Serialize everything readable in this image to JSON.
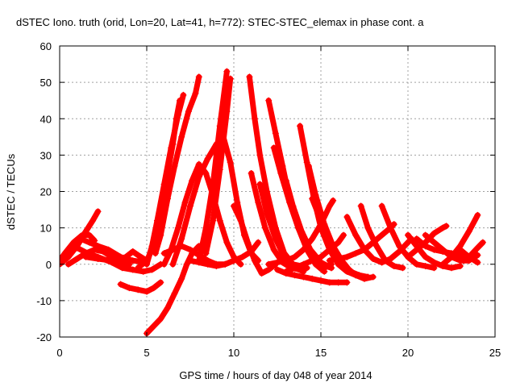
{
  "chart_data": {
    "type": "scatter",
    "title": "dSTEC Iono. truth (orid, Lon=20, Lat=41, h=772): STEC-STEC_elemax in phase cont. a",
    "xlabel": "GPS time / hours of day 048 of year 2014",
    "ylabel": "dSTEC  / TECUs",
    "xlim": [
      0,
      25
    ],
    "ylim": [
      -20,
      60
    ],
    "xticks": [
      "0",
      "5",
      "10",
      "15",
      "20",
      "25"
    ],
    "yticks": [
      "-20",
      "-10",
      "0",
      "10",
      "20",
      "30",
      "40",
      "50",
      "60"
    ],
    "grid": true,
    "marker": "+",
    "color": "#ff0000",
    "arcs": [
      [
        [
          0.0,
          1
        ],
        [
          0.3,
          3
        ],
        [
          0.8,
          6
        ],
        [
          1.3,
          8
        ],
        [
          1.7,
          8
        ],
        [
          2.0,
          6.5
        ]
      ],
      [
        [
          0.0,
          0
        ],
        [
          0.5,
          2
        ],
        [
          1.0,
          5
        ],
        [
          1.5,
          9
        ],
        [
          1.9,
          12
        ],
        [
          2.2,
          14.5
        ]
      ],
      [
        [
          0.3,
          2
        ],
        [
          0.8,
          5
        ],
        [
          1.2,
          7
        ],
        [
          1.7,
          6
        ],
        [
          2.2,
          5
        ],
        [
          2.8,
          4
        ],
        [
          3.5,
          2
        ],
        [
          4.2,
          1
        ],
        [
          5.0,
          0.5
        ]
      ],
      [
        [
          0.5,
          0
        ],
        [
          1.0,
          1.5
        ],
        [
          1.5,
          3
        ],
        [
          2.0,
          4
        ],
        [
          2.5,
          3.5
        ],
        [
          3.0,
          2
        ],
        [
          3.6,
          0.5
        ],
        [
          4.0,
          0
        ]
      ],
      [
        [
          1.0,
          4.5
        ],
        [
          1.6,
          3
        ],
        [
          2.2,
          2
        ],
        [
          3.0,
          0.5
        ],
        [
          3.6,
          -1
        ],
        [
          4.2,
          -1.5
        ],
        [
          4.8,
          -2
        ],
        [
          5.3,
          -1.5
        ],
        [
          5.8,
          0
        ]
      ],
      [
        [
          1.5,
          2
        ],
        [
          2.2,
          1.5
        ],
        [
          3.0,
          1
        ],
        [
          3.8,
          2
        ],
        [
          4.2,
          3.5
        ],
        [
          4.5,
          2.5
        ],
        [
          5.0,
          1
        ]
      ],
      [
        [
          3.5,
          -5.5
        ],
        [
          4.0,
          -6.5
        ],
        [
          4.5,
          -7
        ],
        [
          5.0,
          -7.5
        ],
        [
          5.4,
          -6.5
        ],
        [
          5.8,
          -5
        ]
      ],
      [
        [
          4.5,
          -1
        ],
        [
          5.0,
          1
        ],
        [
          5.3,
          4
        ],
        [
          5.6,
          10
        ],
        [
          5.9,
          17
        ],
        [
          6.2,
          25
        ],
        [
          6.5,
          33
        ],
        [
          6.7,
          40
        ],
        [
          6.9,
          45
        ]
      ],
      [
        [
          5.0,
          0
        ],
        [
          5.3,
          5
        ],
        [
          5.6,
          12
        ],
        [
          6.0,
          22
        ],
        [
          6.4,
          32
        ],
        [
          6.8,
          41
        ],
        [
          7.1,
          46.5
        ]
      ],
      [
        [
          5.5,
          3
        ],
        [
          5.8,
          8
        ],
        [
          6.2,
          18
        ],
        [
          6.6,
          27
        ],
        [
          7.0,
          35
        ],
        [
          7.4,
          42
        ],
        [
          7.8,
          47
        ],
        [
          8.0,
          51.5
        ]
      ],
      [
        [
          5.0,
          -19
        ],
        [
          5.4,
          -17
        ],
        [
          5.8,
          -15
        ],
        [
          6.2,
          -12
        ],
        [
          6.6,
          -8
        ],
        [
          7.0,
          -4
        ],
        [
          7.3,
          0
        ],
        [
          7.6,
          3
        ],
        [
          8.0,
          5
        ]
      ],
      [
        [
          6.0,
          3
        ],
        [
          6.5,
          4
        ],
        [
          7.0,
          5
        ],
        [
          7.5,
          4
        ],
        [
          8.0,
          2.5
        ],
        [
          8.5,
          1
        ],
        [
          9.0,
          0
        ],
        [
          9.5,
          0
        ],
        [
          10.0,
          1
        ]
      ],
      [
        [
          6.0,
          0
        ],
        [
          6.4,
          4
        ],
        [
          6.8,
          10
        ],
        [
          7.2,
          17
        ],
        [
          7.6,
          23
        ],
        [
          8.0,
          27.5
        ],
        [
          8.4,
          25
        ],
        [
          8.8,
          19
        ],
        [
          9.2,
          12
        ],
        [
          9.6,
          6
        ],
        [
          10.0,
          2
        ],
        [
          10.4,
          0
        ]
      ],
      [
        [
          6.5,
          0
        ],
        [
          7.0,
          7
        ],
        [
          7.5,
          16
        ],
        [
          8.0,
          24
        ],
        [
          8.5,
          29
        ],
        [
          9.0,
          33
        ],
        [
          9.4,
          35
        ],
        [
          9.8,
          28
        ],
        [
          10.2,
          17
        ],
        [
          10.6,
          8
        ],
        [
          11.0,
          3
        ],
        [
          11.4,
          1
        ]
      ],
      [
        [
          8.0,
          1
        ],
        [
          8.4,
          10
        ],
        [
          8.8,
          22
        ],
        [
          9.2,
          38
        ],
        [
          9.6,
          53
        ]
      ],
      [
        [
          8.4,
          3
        ],
        [
          8.8,
          12
        ],
        [
          9.2,
          26
        ],
        [
          9.6,
          42
        ],
        [
          9.8,
          51
        ]
      ],
      [
        [
          7.5,
          1
        ],
        [
          8.0,
          0.5
        ],
        [
          8.5,
          0
        ],
        [
          9.0,
          -0.5
        ],
        [
          9.5,
          0
        ],
        [
          10.0,
          1
        ],
        [
          10.5,
          2
        ],
        [
          11.0,
          3.5
        ],
        [
          11.4,
          6
        ]
      ],
      [
        [
          10.0,
          16
        ],
        [
          10.4,
          12
        ],
        [
          10.8,
          6
        ],
        [
          11.2,
          1
        ],
        [
          11.6,
          -2.5
        ],
        [
          12.0,
          -1.5
        ],
        [
          12.4,
          0
        ]
      ],
      [
        [
          10.9,
          51.5
        ],
        [
          11.2,
          40
        ],
        [
          11.5,
          30
        ],
        [
          11.9,
          20
        ],
        [
          12.4,
          10
        ],
        [
          12.9,
          3
        ],
        [
          13.4,
          0
        ],
        [
          13.9,
          -0.5
        ]
      ],
      [
        [
          11.0,
          25
        ],
        [
          11.4,
          17
        ],
        [
          11.8,
          10
        ],
        [
          12.3,
          4
        ],
        [
          12.8,
          0.5
        ],
        [
          13.3,
          -1
        ],
        [
          13.8,
          -1.5
        ],
        [
          14.2,
          -1
        ]
      ],
      [
        [
          11.5,
          22
        ],
        [
          11.9,
          14
        ],
        [
          12.4,
          7
        ],
        [
          12.9,
          2
        ],
        [
          13.5,
          -1
        ],
        [
          14.0,
          -2
        ]
      ],
      [
        [
          12.0,
          45
        ],
        [
          12.4,
          36
        ],
        [
          12.8,
          27
        ],
        [
          13.2,
          18
        ],
        [
          13.7,
          10
        ],
        [
          14.2,
          4
        ],
        [
          14.7,
          0
        ],
        [
          15.2,
          -2
        ]
      ],
      [
        [
          12.3,
          32
        ],
        [
          12.7,
          25
        ],
        [
          13.2,
          17
        ],
        [
          13.7,
          10
        ],
        [
          14.2,
          5
        ],
        [
          14.7,
          1
        ],
        [
          15.2,
          -1
        ],
        [
          15.6,
          0
        ]
      ],
      [
        [
          12.4,
          31
        ],
        [
          12.9,
          23
        ],
        [
          13.4,
          15
        ],
        [
          13.9,
          8
        ],
        [
          14.4,
          3
        ],
        [
          15.0,
          0
        ],
        [
          15.6,
          -1
        ]
      ],
      [
        [
          13.0,
          23
        ],
        [
          13.4,
          16
        ],
        [
          13.9,
          9
        ],
        [
          14.4,
          4
        ],
        [
          15.0,
          0.5
        ],
        [
          15.6,
          -1
        ]
      ],
      [
        [
          13.8,
          38
        ],
        [
          14.2,
          28
        ],
        [
          14.6,
          18
        ],
        [
          15.0,
          10
        ],
        [
          15.5,
          4
        ],
        [
          16.0,
          0
        ],
        [
          16.5,
          -2
        ],
        [
          17.0,
          -3
        ]
      ],
      [
        [
          14.3,
          27
        ],
        [
          14.7,
          19
        ],
        [
          15.2,
          11
        ],
        [
          15.7,
          5
        ],
        [
          16.2,
          1
        ],
        [
          16.7,
          -2
        ],
        [
          17.2,
          -3
        ],
        [
          17.7,
          -3.5
        ]
      ],
      [
        [
          14.5,
          18
        ],
        [
          15.0,
          12
        ],
        [
          15.5,
          6
        ],
        [
          16.0,
          2
        ],
        [
          16.5,
          -1
        ],
        [
          17.0,
          -3
        ],
        [
          17.5,
          -4
        ],
        [
          18.0,
          -3.5
        ]
      ],
      [
        [
          12.0,
          0
        ],
        [
          12.5,
          0.5
        ],
        [
          13.0,
          1
        ],
        [
          13.5,
          2
        ],
        [
          14.0,
          4
        ],
        [
          14.5,
          7
        ],
        [
          15.0,
          11
        ],
        [
          15.5,
          16
        ],
        [
          15.7,
          17.5
        ]
      ],
      [
        [
          13.0,
          -2
        ],
        [
          13.5,
          -1
        ],
        [
          14.0,
          0
        ],
        [
          14.5,
          1
        ],
        [
          15.0,
          2
        ],
        [
          15.5,
          4
        ],
        [
          16.0,
          6
        ],
        [
          16.3,
          8
        ]
      ],
      [
        [
          12.5,
          -1.5
        ],
        [
          13.0,
          -2.5
        ],
        [
          13.5,
          -3
        ],
        [
          14.0,
          -3.5
        ],
        [
          14.5,
          -4
        ],
        [
          15.0,
          -4.5
        ],
        [
          15.5,
          -5
        ],
        [
          16.0,
          -5
        ],
        [
          16.5,
          -5
        ]
      ],
      [
        [
          16.5,
          13
        ],
        [
          17.0,
          8
        ],
        [
          17.5,
          4
        ],
        [
          18.0,
          1.5
        ],
        [
          18.5,
          0.5
        ],
        [
          19.0,
          1.5
        ],
        [
          19.5,
          3.5
        ],
        [
          20.0,
          6
        ],
        [
          20.2,
          7
        ]
      ],
      [
        [
          17.3,
          16
        ],
        [
          17.7,
          10
        ],
        [
          18.2,
          5
        ],
        [
          18.7,
          1
        ],
        [
          19.2,
          -0.5
        ],
        [
          19.7,
          -1
        ]
      ],
      [
        [
          18.5,
          16
        ],
        [
          19.0,
          10
        ],
        [
          19.5,
          5
        ],
        [
          20.0,
          2
        ],
        [
          20.5,
          0
        ],
        [
          21.0,
          -0.5
        ],
        [
          21.5,
          -1
        ]
      ],
      [
        [
          15.5,
          1
        ],
        [
          16.0,
          1.5
        ],
        [
          16.5,
          2
        ],
        [
          17.0,
          3
        ],
        [
          17.5,
          4
        ],
        [
          18.0,
          6
        ],
        [
          18.5,
          8
        ],
        [
          19.0,
          10
        ],
        [
          19.2,
          11
        ]
      ],
      [
        [
          20.0,
          8
        ],
        [
          20.5,
          5
        ],
        [
          21.0,
          2
        ],
        [
          21.5,
          0.5
        ],
        [
          22.0,
          -0.5
        ],
        [
          22.5,
          -1
        ],
        [
          23.0,
          -0.5
        ]
      ],
      [
        [
          20.5,
          7
        ],
        [
          21.0,
          5
        ],
        [
          21.5,
          4
        ],
        [
          22.0,
          3.5
        ],
        [
          22.5,
          3
        ],
        [
          23.0,
          2.5
        ],
        [
          23.5,
          1
        ]
      ],
      [
        [
          20.0,
          2
        ],
        [
          20.5,
          4
        ],
        [
          21.0,
          6
        ],
        [
          21.5,
          8.5
        ],
        [
          22.0,
          10
        ],
        [
          22.2,
          10.5
        ]
      ],
      [
        [
          21.0,
          8
        ],
        [
          21.5,
          6
        ],
        [
          22.0,
          4
        ],
        [
          22.5,
          2
        ],
        [
          23.0,
          1
        ],
        [
          23.5,
          1
        ],
        [
          24.0,
          2.5
        ]
      ],
      [
        [
          22.0,
          0
        ],
        [
          22.5,
          2
        ],
        [
          23.0,
          5
        ],
        [
          23.5,
          9
        ],
        [
          24.0,
          13.5
        ]
      ],
      [
        [
          23.0,
          4
        ],
        [
          23.5,
          2
        ],
        [
          24.0,
          0.5
        ]
      ],
      [
        [
          23.2,
          1
        ],
        [
          23.6,
          2.5
        ],
        [
          24.0,
          4.5
        ],
        [
          24.3,
          6
        ]
      ]
    ]
  }
}
